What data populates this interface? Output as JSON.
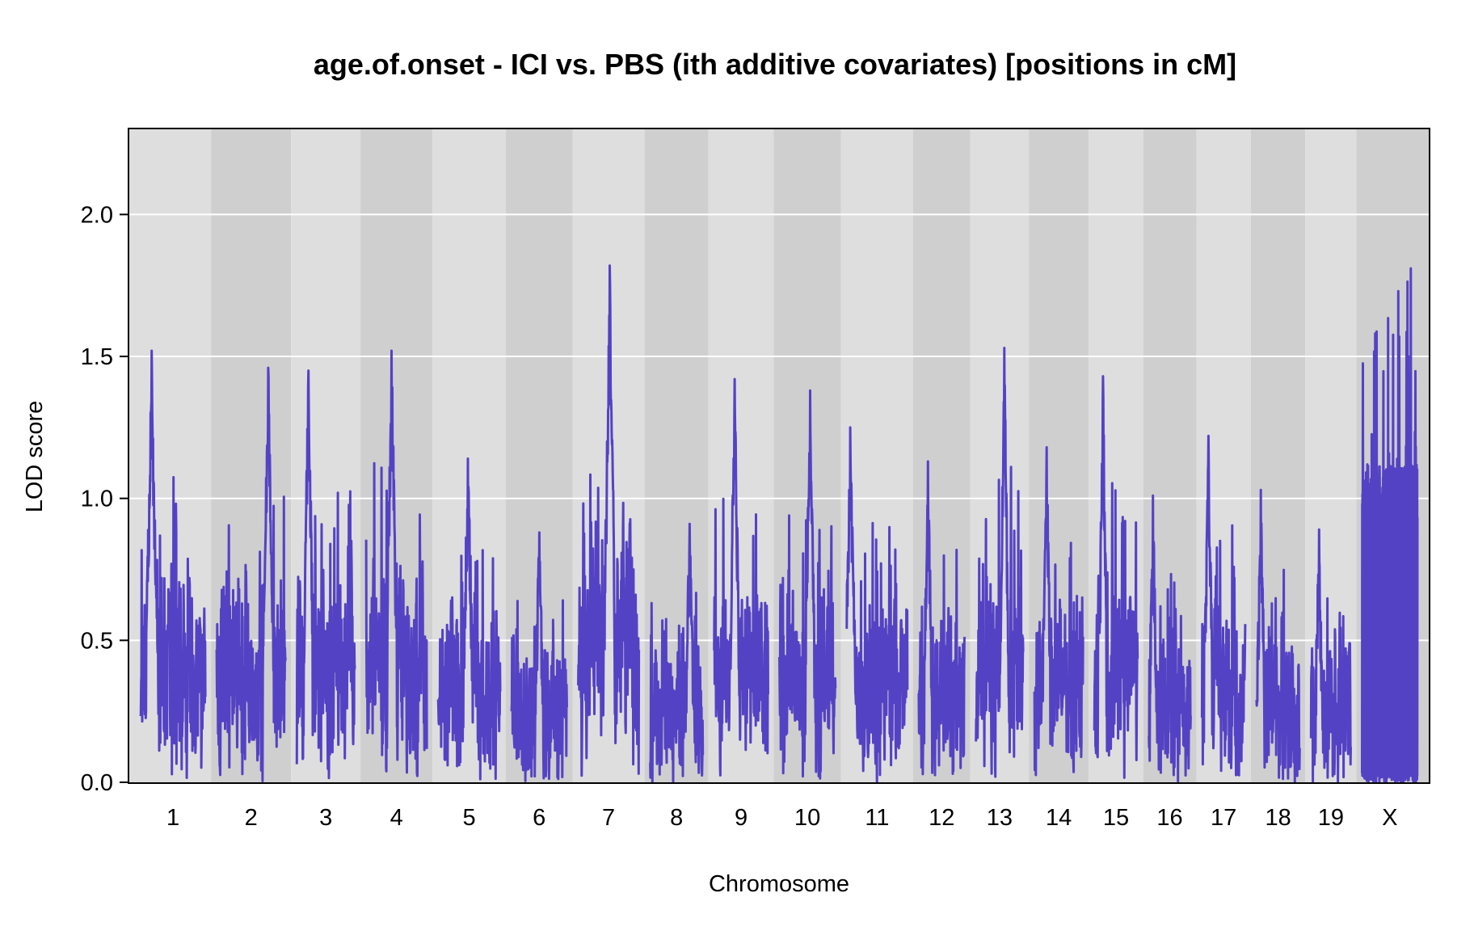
{
  "chart_data": {
    "type": "line",
    "title": "age.of.onset - ICI vs. PBS (ith additive covariates) [positions in cM]",
    "xlabel": "Chromosome",
    "ylabel": "LOD score",
    "ylim": [
      0,
      2.3
    ],
    "yticks": [
      "0.0",
      "0.5",
      "1.0",
      "1.5",
      "2.0"
    ],
    "grid": true,
    "line_color": "#5442C4",
    "band_colors": [
      "#DEDEDE",
      "#CFCFCF"
    ],
    "chromosomes": [
      {
        "label": "1",
        "length_cM": 96,
        "peak_lod": 1.52,
        "peak_frac": 0.17
      },
      {
        "label": "2",
        "length_cM": 102,
        "peak_lod": 1.46,
        "peak_frac": 0.75
      },
      {
        "label": "3",
        "length_cM": 86,
        "peak_lod": 1.45,
        "peak_frac": 0.2
      },
      {
        "label": "4",
        "length_cM": 90,
        "peak_lod": 1.52,
        "peak_frac": 0.42
      },
      {
        "label": "5",
        "length_cM": 92,
        "peak_lod": 1.14,
        "peak_frac": 0.48
      },
      {
        "label": "6",
        "length_cM": 82,
        "peak_lod": 0.88,
        "peak_frac": 0.5
      },
      {
        "label": "7",
        "length_cM": 90,
        "peak_lod": 1.82,
        "peak_frac": 0.52
      },
      {
        "label": "8",
        "length_cM": 78,
        "peak_lod": 0.91,
        "peak_frac": 0.75
      },
      {
        "label": "9",
        "length_cM": 80,
        "peak_lod": 1.42,
        "peak_frac": 0.38
      },
      {
        "label": "10",
        "length_cM": 83,
        "peak_lod": 1.38,
        "peak_frac": 0.55
      },
      {
        "label": "11",
        "length_cM": 90,
        "peak_lod": 1.25,
        "peak_frac": 0.06
      },
      {
        "label": "12",
        "length_cM": 68,
        "peak_lod": 1.13,
        "peak_frac": 0.2
      },
      {
        "label": "13",
        "length_cM": 70,
        "peak_lod": 1.53,
        "peak_frac": 0.6
      },
      {
        "label": "14",
        "length_cM": 72,
        "peak_lod": 1.18,
        "peak_frac": 0.25
      },
      {
        "label": "15",
        "length_cM": 64,
        "peak_lod": 1.43,
        "peak_frac": 0.2
      },
      {
        "label": "16",
        "length_cM": 62,
        "peak_lod": 1.01,
        "peak_frac": 0.1
      },
      {
        "label": "17",
        "length_cM": 64,
        "peak_lod": 1.22,
        "peak_frac": 0.15
      },
      {
        "label": "18",
        "length_cM": 64,
        "peak_lod": 1.03,
        "peak_frac": 0.1
      },
      {
        "label": "19",
        "length_cM": 59,
        "peak_lod": 0.89,
        "peak_frac": 0.2
      },
      {
        "label": "X",
        "length_cM": 82,
        "peak_lod": 1.81,
        "peak_frac": 0.88
      }
    ]
  }
}
